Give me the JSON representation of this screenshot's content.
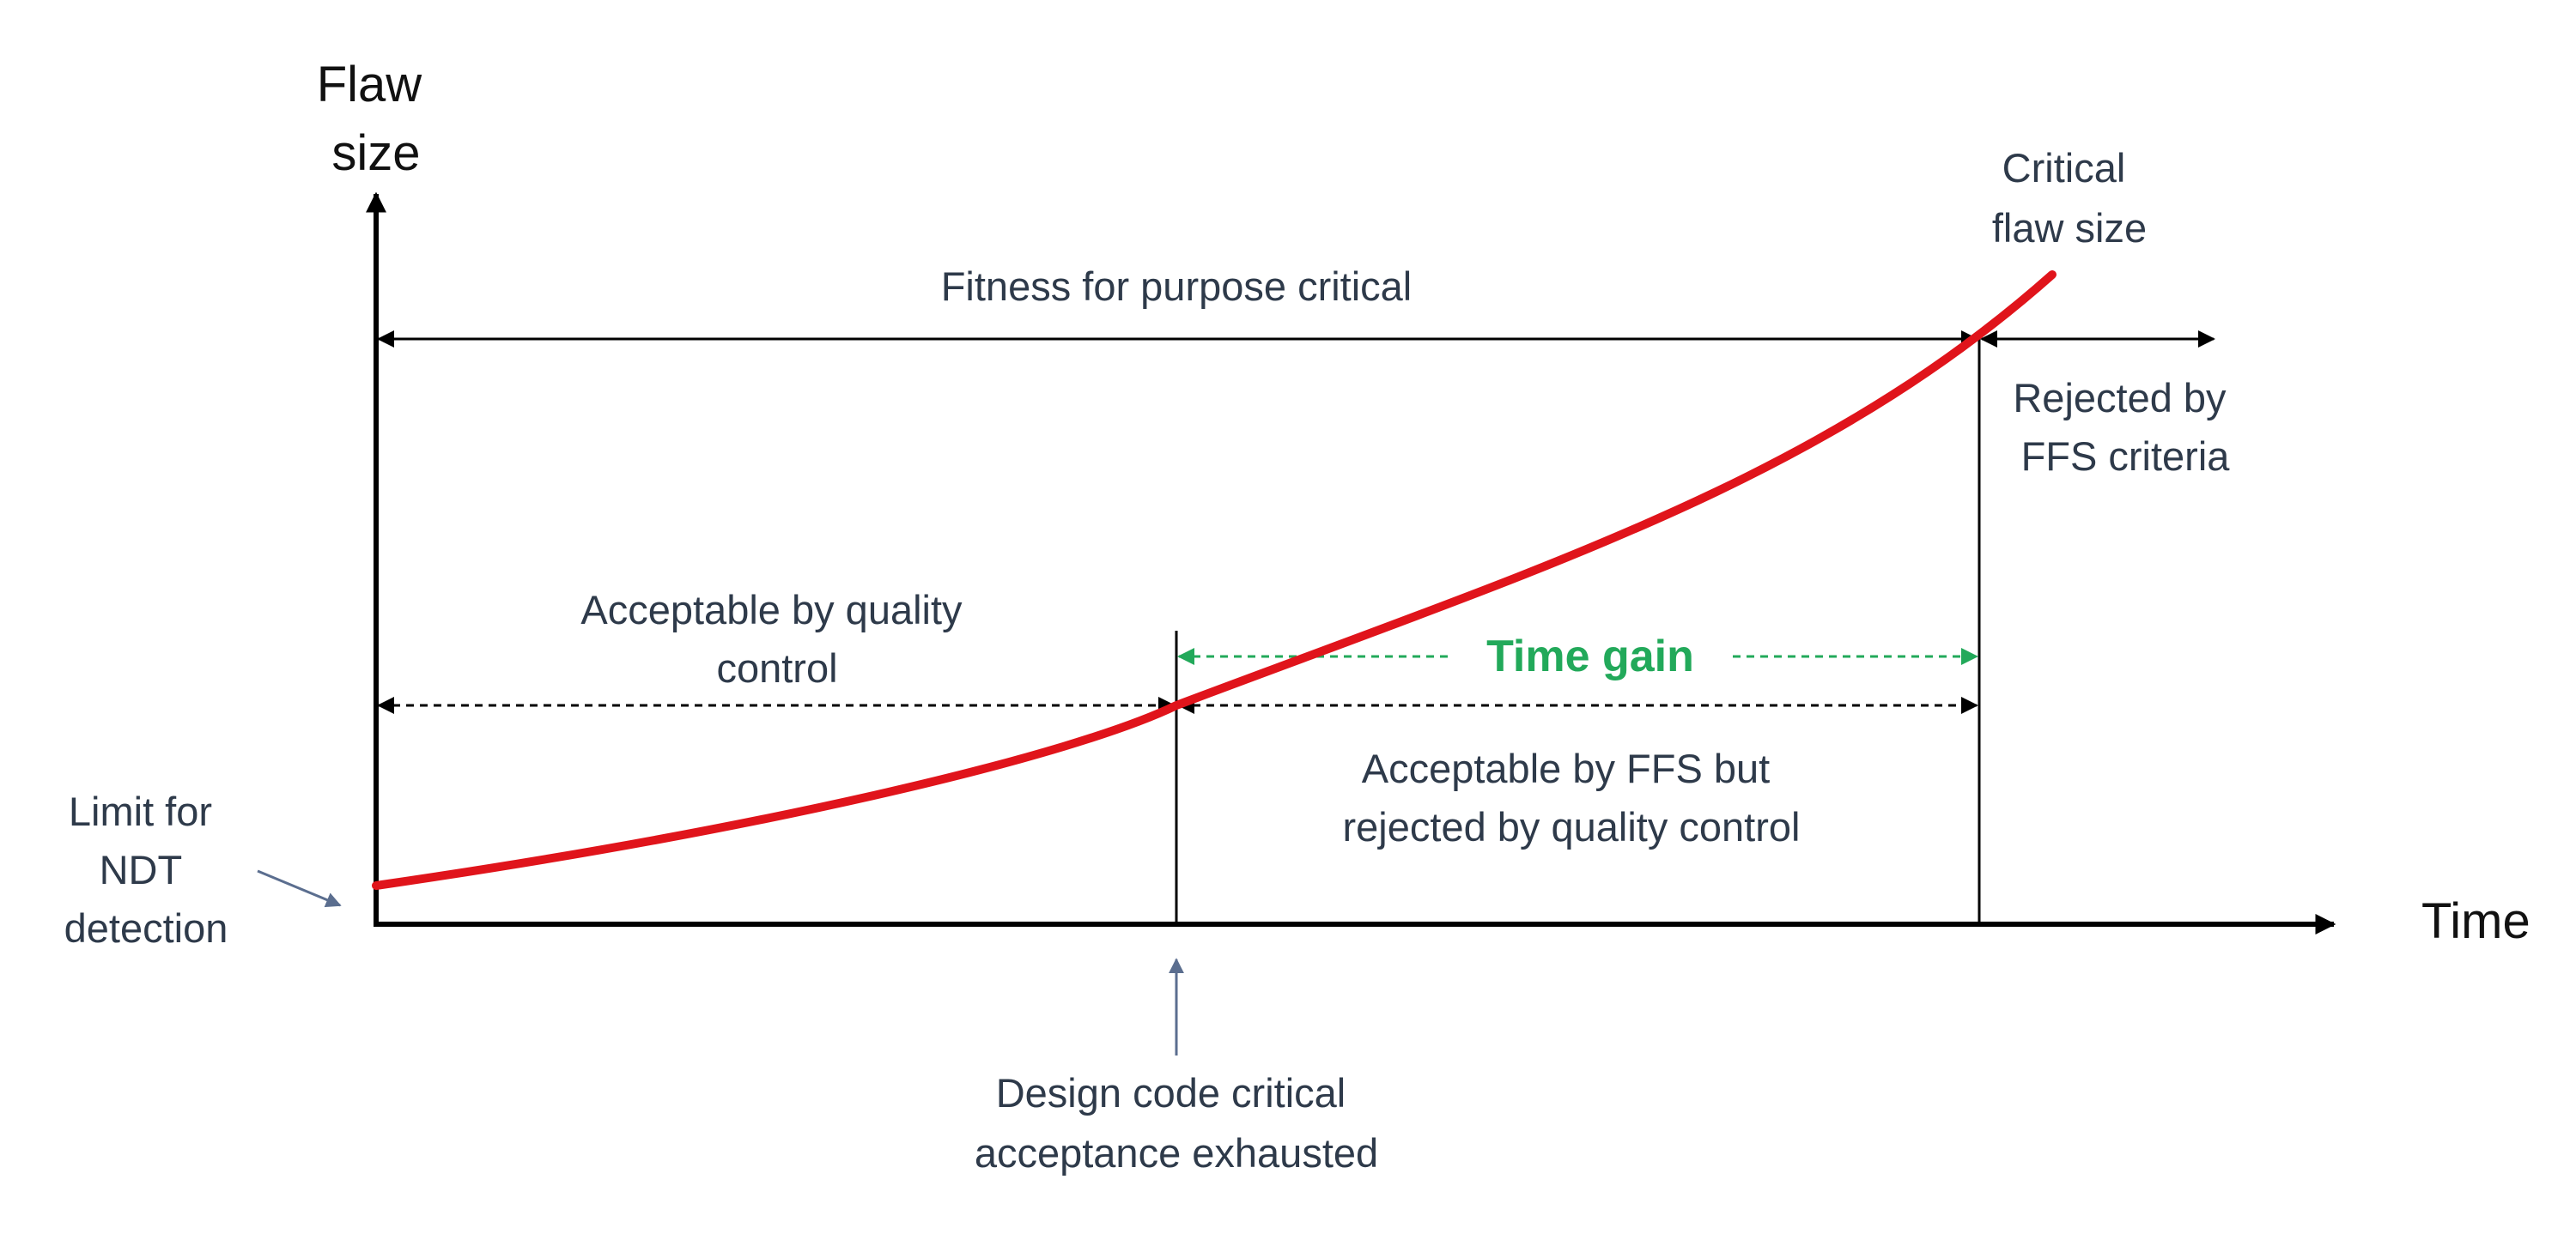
{
  "axes": {
    "y_label": [
      "Flaw",
      "size"
    ],
    "x_label": "Time"
  },
  "labels": {
    "critical_flaw_size": [
      "Critical",
      "flaw size"
    ],
    "ffs_critical": "Fitness for purpose critical",
    "rejected_ffs": [
      "Rejected by",
      "FFS criteria"
    ],
    "acceptable_qc": [
      "Acceptable by quality",
      "control"
    ],
    "time_gain": "Time gain",
    "acceptable_ffs": [
      "Acceptable by FFS but",
      "rejected by quality control"
    ],
    "ndt_limit": [
      "Limit for",
      "NDT",
      "detection"
    ],
    "design_code": [
      "Design code critical",
      "acceptance exhausted"
    ]
  },
  "colors": {
    "curve": "#e0141b",
    "time_gain": "#22a95a",
    "text": "#2e3a4a",
    "pointer_arrow": "#5b6e8f"
  }
}
